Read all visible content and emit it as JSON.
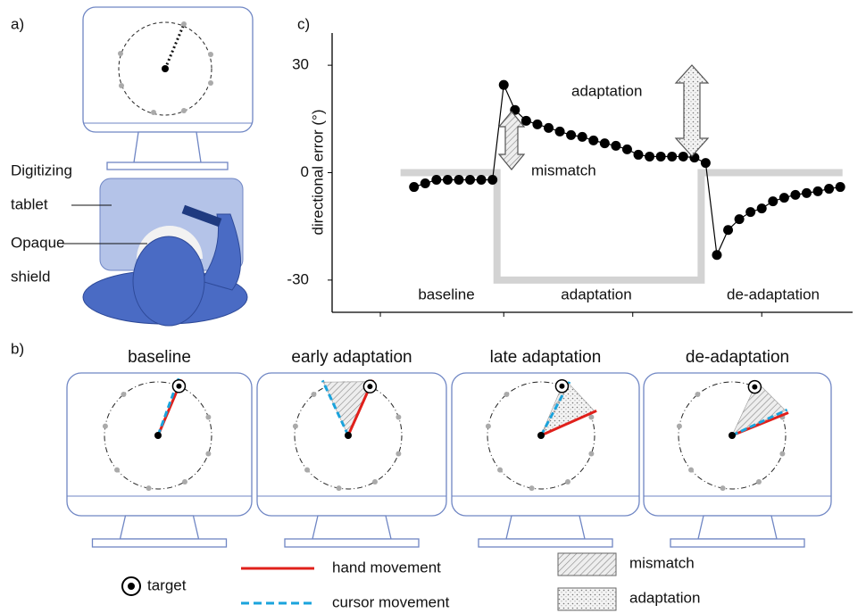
{
  "panel_a": {
    "label": "a)",
    "tablet_label": [
      "Digitizing",
      "tablet"
    ],
    "shield_label": [
      "Opaque",
      "shield"
    ]
  },
  "panel_b": {
    "label": "b)",
    "screens": [
      {
        "title": "baseline"
      },
      {
        "title": "early adaptation"
      },
      {
        "title": "late adaptation"
      },
      {
        "title": "de-adaptation"
      }
    ]
  },
  "panel_c": {
    "label": "c)"
  },
  "legend": {
    "target": "target",
    "hand": "hand movement",
    "cursor": "cursor movement",
    "mismatch": "mismatch",
    "adaptation": "adaptation"
  },
  "chart_data": {
    "type": "line",
    "y_label": "directional error (°)",
    "x": [
      1,
      2,
      3,
      4,
      5,
      6,
      7,
      8,
      9,
      10,
      11,
      12,
      13,
      14,
      15,
      16,
      17,
      18,
      19,
      20,
      21,
      22,
      23,
      24,
      25,
      26,
      27,
      28,
      29,
      30,
      31,
      32,
      33,
      34,
      35,
      36,
      37,
      38,
      39
    ],
    "values": [
      -4,
      -3,
      -2,
      -2,
      -2,
      -2,
      -2,
      -2,
      24.5,
      17.5,
      14.5,
      13.5,
      12.5,
      11.5,
      10.5,
      10,
      9,
      8.2,
      7.5,
      6.5,
      5,
      4.5,
      4.5,
      4.5,
      4.5,
      4.2,
      2.7,
      -23,
      -16,
      -13,
      -11,
      -10,
      -8,
      -7,
      -6.2,
      -5.7,
      -5.2,
      -4.5,
      -4
    ],
    "color": "#000000",
    "schedule": {
      "x": [
        -0.2,
        8.4,
        8.4,
        26.6,
        26.6,
        39.2
      ],
      "values": [
        0,
        0,
        -30,
        -30,
        0,
        0
      ],
      "color": "#d3d3d3"
    },
    "xlim": [
      -6.3,
      40.1
    ],
    "ylim": [
      -39,
      39
    ],
    "xticks": [
      -2,
      9,
      20.5,
      32
    ],
    "yticks": [
      -30,
      0,
      30
    ],
    "annotations": {
      "adaptation": "adaptation",
      "mismatch": "mismatch"
    },
    "phases": [
      "baseline",
      "adaptation",
      "de-adaptation"
    ]
  }
}
